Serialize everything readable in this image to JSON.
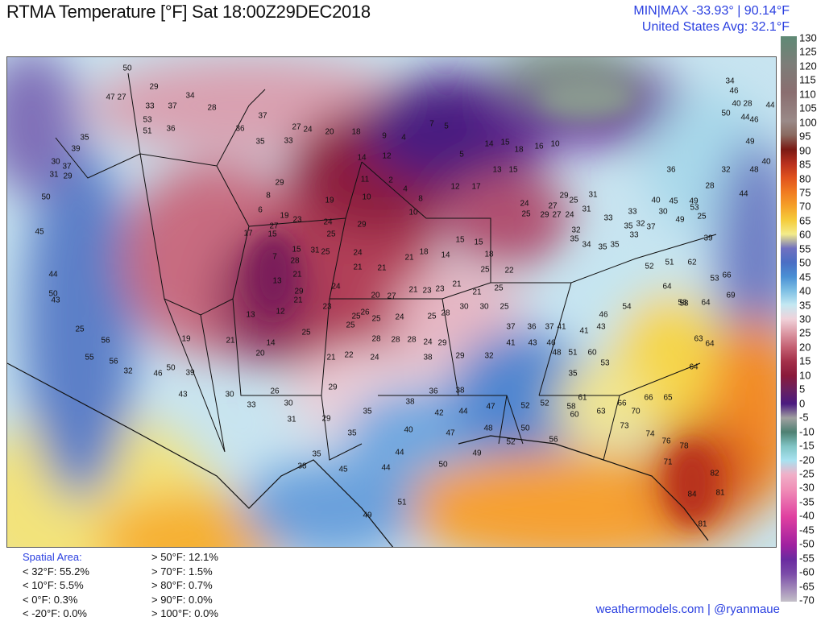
{
  "header": {
    "title": "RTMA Temperature [°F]  Sat 18:00Z29DEC2018",
    "minmax": "MIN|MAX -33.93°  |  90.14°F",
    "average": "United States Avg: 32.1°F"
  },
  "colorbar": {
    "unit": "°F",
    "ticks": [
      "130",
      "125",
      "120",
      "115",
      "110",
      "105",
      "100",
      "95",
      "90",
      "85",
      "80",
      "75",
      "70",
      "65",
      "60",
      "55",
      "50",
      "45",
      "40",
      "35",
      "30",
      "25",
      "20",
      "15",
      "10",
      "5",
      "0",
      "-5",
      "-10",
      "-15",
      "-20",
      "-25",
      "-30",
      "-35",
      "-40",
      "-45",
      "-50",
      "-55",
      "-60",
      "-65",
      "-70"
    ]
  },
  "stats": {
    "heading": "Spatial Area:",
    "below": [
      "< 32°F: 55.2%",
      "< 10°F: 5.5%",
      "< 0°F: 0.3%",
      "< -20°F: 0.0%"
    ],
    "above": [
      "> 50°F: 12.1%",
      "> 70°F: 1.5%",
      "> 80°F: 0.7%",
      "> 90°F: 0.0%",
      "> 100°F: 0.0%"
    ]
  },
  "credit": "weathermodels.com | @ryanmaue",
  "stations": [
    "50",
    "29",
    "47",
    "27",
    "33",
    "37",
    "34",
    "28",
    "37",
    "53",
    "51",
    "36",
    "36",
    "35",
    "33",
    "27",
    "24",
    "20",
    "18",
    "9",
    "4",
    "7",
    "5",
    "5",
    "14",
    "15",
    "18",
    "16",
    "10",
    "14",
    "12",
    "11",
    "2",
    "4",
    "8",
    "10",
    "10",
    "12",
    "17",
    "13",
    "15",
    "19",
    "29",
    "8",
    "6",
    "19",
    "17",
    "15",
    "7",
    "13",
    "12",
    "13",
    "14",
    "20",
    "21",
    "19",
    "35",
    "39",
    "37",
    "30",
    "29",
    "31",
    "50",
    "45",
    "44",
    "43",
    "50",
    "25",
    "56",
    "55",
    "56",
    "32",
    "46",
    "50",
    "39",
    "43",
    "30",
    "33",
    "26",
    "30",
    "31",
    "29",
    "29",
    "35",
    "35",
    "38",
    "40",
    "44",
    "44",
    "38",
    "36",
    "42",
    "47",
    "38",
    "44",
    "49",
    "50",
    "48",
    "47",
    "52",
    "52",
    "50",
    "52",
    "49",
    "51",
    "38",
    "35",
    "45",
    "56",
    "58",
    "60",
    "61",
    "63",
    "66",
    "70",
    "73",
    "74",
    "76",
    "78",
    "71",
    "82",
    "81",
    "84",
    "81",
    "66",
    "65",
    "64",
    "64",
    "63",
    "58",
    "64",
    "53",
    "66",
    "69",
    "58",
    "64",
    "62",
    "51",
    "52",
    "54",
    "46",
    "43",
    "41",
    "41",
    "37",
    "36",
    "37",
    "41",
    "43",
    "46",
    "48",
    "51",
    "60",
    "53",
    "35",
    "32",
    "29",
    "29",
    "24",
    "28",
    "28",
    "28",
    "24",
    "22",
    "21",
    "25",
    "25",
    "25",
    "24",
    "25",
    "28",
    "30",
    "30",
    "25",
    "25",
    "21",
    "21",
    "25",
    "22",
    "18",
    "15",
    "15",
    "14",
    "18",
    "21",
    "21",
    "21",
    "21",
    "23",
    "23",
    "27",
    "20",
    "25",
    "26",
    "24",
    "23",
    "21",
    "29",
    "21",
    "28",
    "31",
    "25",
    "24",
    "29",
    "25",
    "24",
    "15",
    "27",
    "23",
    "24",
    "25",
    "29",
    "27",
    "24",
    "29",
    "27",
    "25",
    "31",
    "31",
    "32",
    "35",
    "34",
    "35",
    "35",
    "35",
    "33",
    "33",
    "33",
    "37",
    "32",
    "30",
    "40",
    "45",
    "49",
    "49",
    "53",
    "25",
    "39",
    "34",
    "46",
    "40",
    "28",
    "44",
    "50",
    "44",
    "46",
    "49",
    "48",
    "40",
    "44",
    "32",
    "28",
    "36"
  ],
  "colors": {
    "accent_text": "#2a3fe0"
  }
}
